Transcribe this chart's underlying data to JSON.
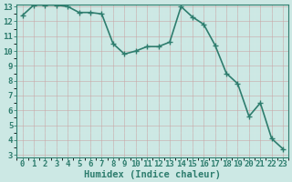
{
  "x": [
    0,
    1,
    2,
    3,
    4,
    5,
    6,
    7,
    8,
    9,
    10,
    11,
    12,
    13,
    14,
    15,
    16,
    17,
    18,
    19,
    20,
    21,
    22,
    23
  ],
  "y": [
    12.4,
    13.1,
    13.1,
    13.1,
    13.0,
    12.6,
    12.6,
    12.5,
    10.5,
    9.8,
    10.0,
    10.3,
    10.3,
    10.6,
    13.0,
    12.3,
    11.8,
    10.4,
    8.5,
    7.8,
    5.6,
    6.5,
    4.1,
    3.4
  ],
  "xlabel": "Humidex (Indice chaleur)",
  "ylim_min": 3,
  "ylim_max": 13,
  "xlim_min": -0.5,
  "xlim_max": 23.5,
  "yticks": [
    3,
    4,
    5,
    6,
    7,
    8,
    9,
    10,
    11,
    12,
    13
  ],
  "xticks": [
    0,
    1,
    2,
    3,
    4,
    5,
    6,
    7,
    8,
    9,
    10,
    11,
    12,
    13,
    14,
    15,
    16,
    17,
    18,
    19,
    20,
    21,
    22,
    23
  ],
  "line_color": "#2e7d6e",
  "marker": "+",
  "bg_color": "#cce8e4",
  "grid_major_color": "#b8d8d4",
  "grid_minor_color": "#d8ecea",
  "axis_bg": "#cce8e4",
  "xlabel_fontsize": 7.5,
  "tick_fontsize": 6.5,
  "line_width": 1.2,
  "marker_size": 4,
  "marker_edge_width": 1.0
}
